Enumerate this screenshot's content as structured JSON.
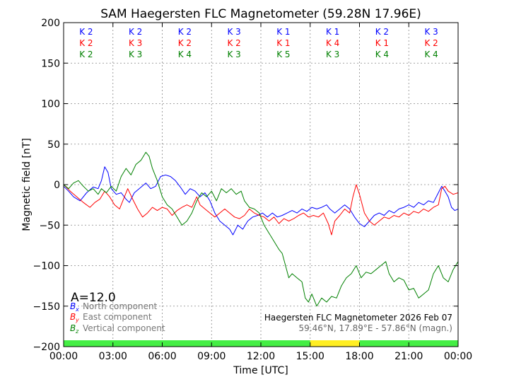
{
  "chart_data": {
    "type": "line",
    "title": "SAM Haegersten FLC Magnetometer (59.28N 17.96E)",
    "xlabel": "Time [UTC]",
    "ylabel": "Magnetic field [nT]",
    "xlim": [
      0,
      24
    ],
    "ylim": [
      -200,
      200
    ],
    "x_ticks": [
      0,
      3,
      6,
      9,
      12,
      15,
      18,
      21,
      24
    ],
    "x_tick_labels": [
      "00:00",
      "03:00",
      "06:00",
      "09:00",
      "12:00",
      "15:00",
      "18:00",
      "21:00",
      "00:00"
    ],
    "y_ticks": [
      -200,
      -150,
      -100,
      -50,
      0,
      50,
      100,
      150,
      200
    ],
    "y_tick_labels": [
      "−200",
      "−150",
      "−100",
      "−50",
      "0",
      "50",
      "100",
      "150",
      "200"
    ],
    "grid": true,
    "annotation_a": "A=12.0",
    "legend": [
      {
        "symbol": "B",
        "sub": "x",
        "label": "North component",
        "color": "#0000ff"
      },
      {
        "symbol": "B",
        "sub": "y",
        "label": "East component",
        "color": "#ff0000"
      },
      {
        "symbol": "B",
        "sub": "z",
        "label": "Vertical component",
        "color": "#008000"
      }
    ],
    "station_note": "Haegersten FLC Magnetometer 2026 Feb 07",
    "coord_note": "59.46°N, 17.89°E - 57.86°N (magn.)",
    "k_indices": {
      "intervals": [
        [
          0,
          3
        ],
        [
          3,
          6
        ],
        [
          6,
          9
        ],
        [
          9,
          12
        ],
        [
          12,
          15
        ],
        [
          15,
          18
        ],
        [
          18,
          21
        ],
        [
          21,
          24
        ]
      ],
      "rows": [
        {
          "component": "north",
          "color": "#0000ff",
          "labels": [
            "K 2",
            "K 2",
            "K 2",
            "K 3",
            "K 1",
            "K 1",
            "K 2",
            "K 3"
          ]
        },
        {
          "component": "east",
          "color": "#ff0000",
          "labels": [
            "K 2",
            "K 3",
            "K 2",
            "K 2",
            "K 1",
            "K 4",
            "K 1",
            "K 2"
          ]
        },
        {
          "component": "vertical",
          "color": "#008000",
          "labels": [
            "K 2",
            "K 3",
            "K 4",
            "K 3",
            "K 5",
            "K 3",
            "K 4",
            "K 4"
          ]
        }
      ]
    },
    "activity_bar": [
      {
        "from": 0,
        "to": 15,
        "color": "#44ee44"
      },
      {
        "from": 15,
        "to": 18,
        "color": "#ffee22"
      },
      {
        "from": 18,
        "to": 24,
        "color": "#44ee44"
      }
    ],
    "series": [
      {
        "name": "North component",
        "color": "#0000ff",
        "points": [
          [
            0,
            -2
          ],
          [
            0.3,
            -8
          ],
          [
            0.6,
            -15
          ],
          [
            1,
            -20
          ],
          [
            1.4,
            -10
          ],
          [
            1.8,
            -3
          ],
          [
            2.1,
            -5
          ],
          [
            2.3,
            5
          ],
          [
            2.5,
            22
          ],
          [
            2.7,
            15
          ],
          [
            2.9,
            -5
          ],
          [
            3.2,
            -12
          ],
          [
            3.5,
            -10
          ],
          [
            3.8,
            -18
          ],
          [
            4,
            -22
          ],
          [
            4.3,
            -10
          ],
          [
            4.6,
            -5
          ],
          [
            5,
            2
          ],
          [
            5.3,
            -5
          ],
          [
            5.6,
            -2
          ],
          [
            5.9,
            10
          ],
          [
            6.2,
            12
          ],
          [
            6.5,
            10
          ],
          [
            6.8,
            5
          ],
          [
            7.1,
            -3
          ],
          [
            7.4,
            -12
          ],
          [
            7.7,
            -5
          ],
          [
            8,
            -8
          ],
          [
            8.3,
            -15
          ],
          [
            8.6,
            -10
          ],
          [
            8.9,
            -20
          ],
          [
            9.2,
            -35
          ],
          [
            9.5,
            -45
          ],
          [
            9.8,
            -50
          ],
          [
            10.1,
            -55
          ],
          [
            10.3,
            -62
          ],
          [
            10.6,
            -50
          ],
          [
            10.9,
            -55
          ],
          [
            11.2,
            -45
          ],
          [
            11.5,
            -40
          ],
          [
            11.8,
            -38
          ],
          [
            12.1,
            -35
          ],
          [
            12.4,
            -40
          ],
          [
            12.7,
            -35
          ],
          [
            13,
            -40
          ],
          [
            13.3,
            -38
          ],
          [
            13.6,
            -35
          ],
          [
            13.9,
            -32
          ],
          [
            14.2,
            -35
          ],
          [
            14.5,
            -30
          ],
          [
            14.8,
            -33
          ],
          [
            15.1,
            -28
          ],
          [
            15.4,
            -30
          ],
          [
            15.7,
            -28
          ],
          [
            16,
            -25
          ],
          [
            16.2,
            -30
          ],
          [
            16.5,
            -35
          ],
          [
            16.8,
            -30
          ],
          [
            17.1,
            -25
          ],
          [
            17.4,
            -30
          ],
          [
            17.7,
            -40
          ],
          [
            18,
            -48
          ],
          [
            18.3,
            -52
          ],
          [
            18.6,
            -45
          ],
          [
            18.9,
            -38
          ],
          [
            19.2,
            -35
          ],
          [
            19.5,
            -38
          ],
          [
            19.8,
            -32
          ],
          [
            20.1,
            -35
          ],
          [
            20.4,
            -30
          ],
          [
            20.7,
            -28
          ],
          [
            21,
            -25
          ],
          [
            21.3,
            -28
          ],
          [
            21.6,
            -22
          ],
          [
            21.9,
            -25
          ],
          [
            22.2,
            -20
          ],
          [
            22.5,
            -22
          ],
          [
            22.8,
            -10
          ],
          [
            23,
            -2
          ],
          [
            23.2,
            -8
          ],
          [
            23.4,
            -15
          ],
          [
            23.6,
            -28
          ],
          [
            23.8,
            -32
          ],
          [
            24,
            -30
          ]
        ]
      },
      {
        "name": "East component",
        "color": "#ff0000",
        "points": [
          [
            0,
            0
          ],
          [
            0.4,
            -8
          ],
          [
            0.8,
            -15
          ],
          [
            1.2,
            -22
          ],
          [
            1.6,
            -28
          ],
          [
            1.9,
            -22
          ],
          [
            2.2,
            -18
          ],
          [
            2.5,
            -8
          ],
          [
            2.8,
            -15
          ],
          [
            3.1,
            -25
          ],
          [
            3.4,
            -30
          ],
          [
            3.6,
            -20
          ],
          [
            3.9,
            -5
          ],
          [
            4.2,
            -18
          ],
          [
            4.5,
            -30
          ],
          [
            4.8,
            -40
          ],
          [
            5.1,
            -35
          ],
          [
            5.4,
            -28
          ],
          [
            5.7,
            -32
          ],
          [
            6,
            -28
          ],
          [
            6.3,
            -30
          ],
          [
            6.6,
            -38
          ],
          [
            6.9,
            -32
          ],
          [
            7.2,
            -28
          ],
          [
            7.5,
            -25
          ],
          [
            7.8,
            -28
          ],
          [
            8.1,
            -15
          ],
          [
            8.3,
            -25
          ],
          [
            8.6,
            -30
          ],
          [
            8.9,
            -35
          ],
          [
            9.2,
            -40
          ],
          [
            9.5,
            -35
          ],
          [
            9.8,
            -30
          ],
          [
            10.1,
            -35
          ],
          [
            10.4,
            -40
          ],
          [
            10.7,
            -42
          ],
          [
            11,
            -38
          ],
          [
            11.3,
            -30
          ],
          [
            11.6,
            -35
          ],
          [
            11.9,
            -38
          ],
          [
            12.2,
            -40
          ],
          [
            12.5,
            -45
          ],
          [
            12.8,
            -40
          ],
          [
            13.1,
            -48
          ],
          [
            13.4,
            -42
          ],
          [
            13.7,
            -45
          ],
          [
            14,
            -42
          ],
          [
            14.3,
            -38
          ],
          [
            14.6,
            -35
          ],
          [
            14.9,
            -40
          ],
          [
            15.2,
            -38
          ],
          [
            15.5,
            -40
          ],
          [
            15.8,
            -35
          ],
          [
            16.1,
            -48
          ],
          [
            16.3,
            -62
          ],
          [
            16.5,
            -45
          ],
          [
            16.8,
            -38
          ],
          [
            17.1,
            -30
          ],
          [
            17.4,
            -35
          ],
          [
            17.6,
            -15
          ],
          [
            17.8,
            0
          ],
          [
            18,
            -12
          ],
          [
            18.3,
            -35
          ],
          [
            18.6,
            -45
          ],
          [
            18.9,
            -50
          ],
          [
            19.2,
            -45
          ],
          [
            19.5,
            -40
          ],
          [
            19.8,
            -42
          ],
          [
            20.1,
            -38
          ],
          [
            20.4,
            -40
          ],
          [
            20.7,
            -35
          ],
          [
            21,
            -38
          ],
          [
            21.3,
            -33
          ],
          [
            21.6,
            -35
          ],
          [
            21.9,
            -30
          ],
          [
            22.2,
            -33
          ],
          [
            22.5,
            -28
          ],
          [
            22.8,
            -25
          ],
          [
            23,
            -5
          ],
          [
            23.2,
            -2
          ],
          [
            23.4,
            -8
          ],
          [
            23.7,
            -12
          ],
          [
            24,
            -10
          ]
        ]
      },
      {
        "name": "Vertical component",
        "color": "#008000",
        "points": [
          [
            0,
            0
          ],
          [
            0.3,
            -5
          ],
          [
            0.6,
            2
          ],
          [
            0.9,
            5
          ],
          [
            1.2,
            -2
          ],
          [
            1.5,
            -8
          ],
          [
            1.8,
            -5
          ],
          [
            2.1,
            -12
          ],
          [
            2.3,
            -5
          ],
          [
            2.6,
            -10
          ],
          [
            2.9,
            -2
          ],
          [
            3.2,
            -8
          ],
          [
            3.5,
            10
          ],
          [
            3.8,
            20
          ],
          [
            4.1,
            12
          ],
          [
            4.4,
            25
          ],
          [
            4.7,
            30
          ],
          [
            5,
            40
          ],
          [
            5.2,
            35
          ],
          [
            5.4,
            20
          ],
          [
            5.7,
            5
          ],
          [
            6,
            -15
          ],
          [
            6.3,
            -25
          ],
          [
            6.6,
            -30
          ],
          [
            6.9,
            -40
          ],
          [
            7.2,
            -50
          ],
          [
            7.5,
            -45
          ],
          [
            7.8,
            -35
          ],
          [
            8.1,
            -20
          ],
          [
            8.4,
            -10
          ],
          [
            8.7,
            -15
          ],
          [
            9,
            -8
          ],
          [
            9.3,
            -20
          ],
          [
            9.6,
            -5
          ],
          [
            9.9,
            -10
          ],
          [
            10.2,
            -5
          ],
          [
            10.5,
            -12
          ],
          [
            10.8,
            -8
          ],
          [
            11,
            -20
          ],
          [
            11.3,
            -28
          ],
          [
            11.6,
            -30
          ],
          [
            11.9,
            -35
          ],
          [
            12.2,
            -50
          ],
          [
            12.5,
            -60
          ],
          [
            12.8,
            -70
          ],
          [
            13.1,
            -80
          ],
          [
            13.3,
            -85
          ],
          [
            13.5,
            -100
          ],
          [
            13.7,
            -115
          ],
          [
            13.9,
            -110
          ],
          [
            14.2,
            -115
          ],
          [
            14.5,
            -120
          ],
          [
            14.7,
            -140
          ],
          [
            14.9,
            -145
          ],
          [
            15.1,
            -135
          ],
          [
            15.4,
            -150
          ],
          [
            15.7,
            -140
          ],
          [
            16,
            -145
          ],
          [
            16.3,
            -138
          ],
          [
            16.6,
            -140
          ],
          [
            16.9,
            -125
          ],
          [
            17.2,
            -115
          ],
          [
            17.5,
            -110
          ],
          [
            17.8,
            -100
          ],
          [
            18.1,
            -115
          ],
          [
            18.4,
            -108
          ],
          [
            18.7,
            -110
          ],
          [
            19,
            -105
          ],
          [
            19.3,
            -100
          ],
          [
            19.6,
            -95
          ],
          [
            19.8,
            -110
          ],
          [
            20.1,
            -120
          ],
          [
            20.4,
            -115
          ],
          [
            20.7,
            -118
          ],
          [
            21,
            -130
          ],
          [
            21.3,
            -128
          ],
          [
            21.6,
            -140
          ],
          [
            21.9,
            -135
          ],
          [
            22.2,
            -130
          ],
          [
            22.5,
            -110
          ],
          [
            22.8,
            -100
          ],
          [
            23.1,
            -115
          ],
          [
            23.4,
            -120
          ],
          [
            23.7,
            -105
          ],
          [
            24,
            -95
          ]
        ]
      }
    ]
  }
}
